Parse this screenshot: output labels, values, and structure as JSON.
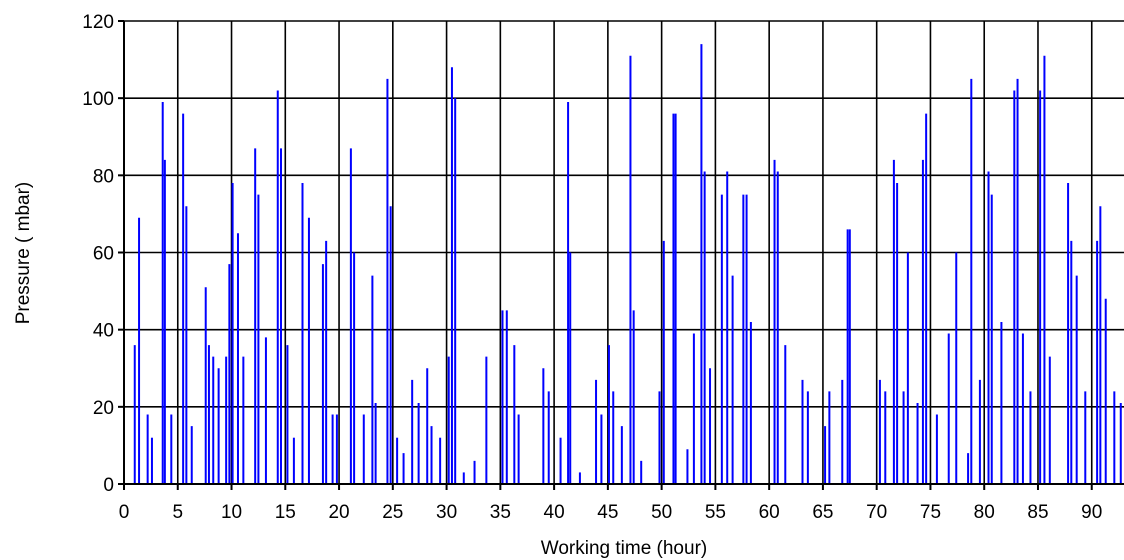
{
  "chart_data": {
    "type": "line",
    "title": "",
    "xlabel": "Working time (hour)",
    "ylabel": "Pressure ( mbar)",
    "xlim": [
      0,
      93
    ],
    "ylim": [
      0,
      120
    ],
    "x_ticks": [
      0,
      5,
      10,
      15,
      20,
      25,
      30,
      35,
      40,
      45,
      50,
      55,
      60,
      65,
      70,
      75,
      80,
      85,
      90
    ],
    "y_ticks": [
      0,
      20,
      40,
      60,
      80,
      100,
      120
    ],
    "grid": true,
    "series_color": "#0000ff",
    "series": [
      {
        "name": "",
        "x": [
          1.0,
          1.4,
          2.2,
          2.6,
          3.6,
          3.8,
          4.4,
          5.5,
          5.8,
          6.3,
          7.6,
          7.9,
          8.3,
          8.8,
          9.5,
          9.8,
          10.1,
          10.6,
          11.1,
          12.2,
          12.5,
          13.2,
          14.3,
          14.6,
          15.2,
          15.8,
          16.6,
          17.2,
          18.5,
          18.8,
          19.4,
          19.8,
          21.1,
          21.4,
          22.3,
          23.1,
          23.4,
          24.5,
          24.8,
          25.4,
          26.0,
          26.8,
          27.4,
          28.2,
          28.6,
          29.4,
          30.2,
          30.5,
          30.8,
          31.6,
          32.6,
          33.7,
          35.2,
          35.6,
          36.3,
          36.7,
          39.0,
          39.5,
          40.6,
          41.3,
          41.5,
          42.4,
          43.9,
          44.4,
          45.1,
          45.5,
          46.3,
          47.1,
          47.4,
          48.1,
          49.8,
          50.2,
          51.1,
          51.3,
          52.4,
          53.0,
          53.7,
          54.0,
          54.5,
          55.6,
          56.1,
          56.6,
          57.6,
          57.9,
          58.3,
          60.5,
          60.8,
          61.5,
          63.1,
          63.6,
          65.2,
          65.6,
          66.8,
          67.3,
          67.5,
          70.3,
          70.8,
          71.6,
          71.9,
          72.5,
          72.9,
          73.8,
          74.3,
          74.6,
          75.6,
          76.7,
          77.4,
          78.5,
          78.8,
          79.6,
          80.4,
          80.7,
          81.6,
          82.8,
          83.1,
          83.6,
          84.3,
          85.2,
          85.6,
          86.1,
          87.8,
          88.1,
          88.6,
          89.4,
          90.5,
          90.8,
          91.3,
          92.1,
          92.7
        ],
        "values": [
          36,
          69,
          18,
          12,
          99,
          84,
          18,
          96,
          72,
          15,
          51,
          36,
          33,
          30,
          33,
          57,
          78,
          65,
          33,
          87,
          75,
          38,
          102,
          87,
          36,
          12,
          78,
          69,
          57,
          63,
          18,
          18,
          87,
          60,
          18,
          54,
          21,
          105,
          72,
          12,
          8,
          27,
          21,
          30,
          15,
          12,
          33,
          108,
          100,
          3,
          6,
          33,
          45,
          45,
          36,
          18,
          30,
          24,
          12,
          99,
          60,
          3,
          27,
          18,
          36,
          24,
          15,
          111,
          45,
          6,
          24,
          63,
          96,
          96,
          9,
          39,
          114,
          81,
          30,
          75,
          81,
          54,
          75,
          75,
          42,
          84,
          81,
          36,
          27,
          24,
          15,
          24,
          27,
          66,
          66,
          27,
          24,
          84,
          78,
          24,
          60,
          21,
          84,
          96,
          18,
          39,
          60,
          8,
          105,
          27,
          81,
          75,
          42,
          102,
          105,
          39,
          24,
          102,
          111,
          33,
          78,
          63,
          54,
          24,
          63,
          72,
          48,
          24,
          21
        ]
      }
    ]
  }
}
